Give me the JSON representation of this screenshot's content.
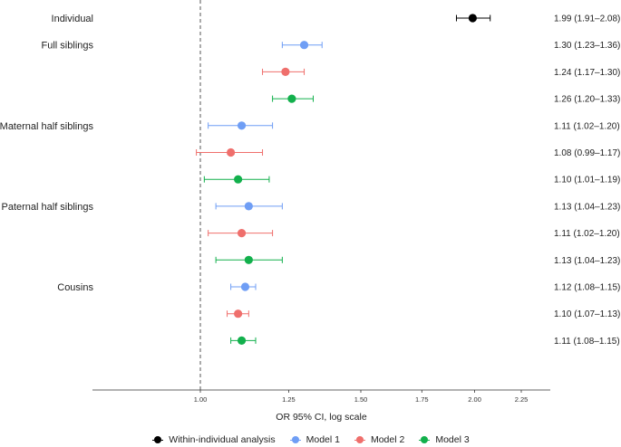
{
  "chart_data": {
    "type": "forest",
    "xlabel": "OR 95% CI, log scale",
    "xscale": "log",
    "xlim": [
      0.857,
      2.5
    ],
    "reference_line": 1.0,
    "ticks": [
      {
        "value": 1.0,
        "label": "1.00"
      },
      {
        "value": 1.25,
        "label": "1.25"
      },
      {
        "value": 1.5,
        "label": "1.50"
      },
      {
        "value": 1.75,
        "label": "1.75"
      },
      {
        "value": 2.0,
        "label": "2.00"
      },
      {
        "value": 2.25,
        "label": "2.25"
      }
    ],
    "groups": [
      {
        "label": "Individual"
      },
      {
        "label": "Full siblings"
      },
      {
        "label": "Maternal half siblings"
      },
      {
        "label": "Paternal half siblings"
      },
      {
        "label": "Cousins"
      }
    ],
    "series": [
      {
        "name": "Within-individual analysis",
        "color": "#000000"
      },
      {
        "name": "Model 1",
        "color": "#6f9ef5"
      },
      {
        "name": "Model 2",
        "color": "#ef6f6c"
      },
      {
        "name": "Model 3",
        "color": "#12b04c"
      }
    ],
    "rows": [
      {
        "group": 0,
        "series": 0,
        "est": 1.99,
        "lo": 1.91,
        "hi": 2.08,
        "text": "1.99 (1.91–2.08)"
      },
      {
        "group": 1,
        "series": 1,
        "est": 1.3,
        "lo": 1.23,
        "hi": 1.36,
        "text": "1.30 (1.23–1.36)"
      },
      {
        "group": 1,
        "series": 2,
        "est": 1.24,
        "lo": 1.17,
        "hi": 1.3,
        "text": "1.24 (1.17–1.30)"
      },
      {
        "group": 1,
        "series": 3,
        "est": 1.26,
        "lo": 1.2,
        "hi": 1.33,
        "text": "1.26 (1.20–1.33)"
      },
      {
        "group": 2,
        "series": 1,
        "est": 1.11,
        "lo": 1.02,
        "hi": 1.2,
        "text": "1.11 (1.02–1.20)"
      },
      {
        "group": 2,
        "series": 2,
        "est": 1.08,
        "lo": 0.99,
        "hi": 1.17,
        "text": "1.08 (0.99–1.17)"
      },
      {
        "group": 2,
        "series": 3,
        "est": 1.1,
        "lo": 1.01,
        "hi": 1.19,
        "text": "1.10 (1.01–1.19)"
      },
      {
        "group": 3,
        "series": 1,
        "est": 1.13,
        "lo": 1.04,
        "hi": 1.23,
        "text": "1.13 (1.04–1.23)"
      },
      {
        "group": 3,
        "series": 2,
        "est": 1.11,
        "lo": 1.02,
        "hi": 1.2,
        "text": "1.11 (1.02–1.20)"
      },
      {
        "group": 3,
        "series": 3,
        "est": 1.13,
        "lo": 1.04,
        "hi": 1.23,
        "text": "1.13 (1.04–1.23)"
      },
      {
        "group": 4,
        "series": 1,
        "est": 1.12,
        "lo": 1.08,
        "hi": 1.15,
        "text": "1.12 (1.08–1.15)"
      },
      {
        "group": 4,
        "series": 2,
        "est": 1.1,
        "lo": 1.07,
        "hi": 1.13,
        "text": "1.10 (1.07–1.13)"
      },
      {
        "group": 4,
        "series": 3,
        "est": 1.11,
        "lo": 1.08,
        "hi": 1.15,
        "text": "1.11 (1.08–1.15)"
      }
    ]
  }
}
